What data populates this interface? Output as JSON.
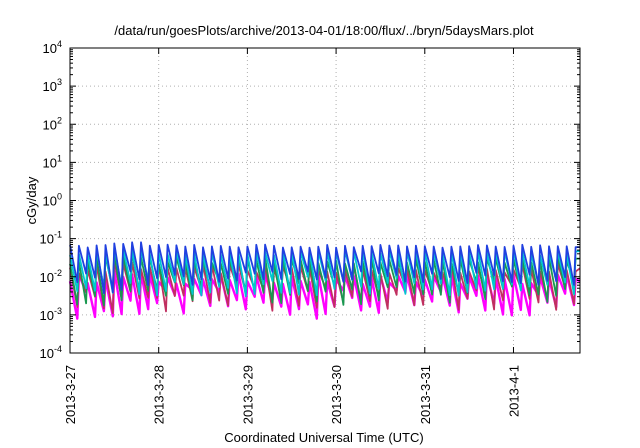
{
  "chart_data": {
    "type": "line",
    "title": "/data/run/goesPlots/archive/2013-04-01/18:00/flux/../bryn/5daysMars.plot",
    "xlabel": "Coordinated Universal Time (UTC)",
    "ylabel": "cGy/day",
    "y_scale": "log",
    "ylim": [
      0.0001,
      10000
    ],
    "xlim": [
      "2013-03-27T00:00",
      "2013-04-01T18:00"
    ],
    "grid": true,
    "legend": "none",
    "y_ticks": [
      {
        "value": 0.0001,
        "base": "10",
        "exp": "-4"
      },
      {
        "value": 0.001,
        "base": "10",
        "exp": "-3"
      },
      {
        "value": 0.01,
        "base": "10",
        "exp": "-2"
      },
      {
        "value": 0.1,
        "base": "10",
        "exp": "-1"
      },
      {
        "value": 1,
        "base": "10",
        "exp": "0"
      },
      {
        "value": 10,
        "base": "10",
        "exp": "1"
      },
      {
        "value": 100,
        "base": "10",
        "exp": "2"
      },
      {
        "value": 1000,
        "base": "10",
        "exp": "3"
      },
      {
        "value": 10000,
        "base": "10",
        "exp": "4"
      }
    ],
    "x_ticks": [
      {
        "value": "2013-03-27T00:00",
        "label": "2013-3-27"
      },
      {
        "value": "2013-03-28T00:00",
        "label": "2013-3-28"
      },
      {
        "value": "2013-03-29T00:00",
        "label": "2013-3-29"
      },
      {
        "value": "2013-03-30T00:00",
        "label": "2013-3-30"
      },
      {
        "value": "2013-03-31T00:00",
        "label": "2013-3-31"
      },
      {
        "value": "2013-04-01T00:00",
        "label": "2013-4-1"
      }
    ],
    "cycle_hours": 2.4,
    "series": [
      {
        "color": "#ff00ff",
        "band_min": [
          0.0008,
          0.0045
        ],
        "band_max": [
          0.003,
          0.012
        ]
      },
      {
        "color": "#c03060",
        "band_min": [
          0.0012,
          0.006
        ],
        "band_max": [
          0.006,
          0.022
        ]
      },
      {
        "color": "#1a9850",
        "band_min": [
          0.0018,
          0.008
        ],
        "band_max": [
          0.012,
          0.035
        ]
      },
      {
        "color": "#00c8d0",
        "band_min": [
          0.003,
          0.01
        ],
        "band_max": [
          0.025,
          0.05
        ]
      },
      {
        "color": "#2040e0",
        "band_min": [
          0.006,
          0.014
        ],
        "band_max": [
          0.045,
          0.07
        ]
      }
    ]
  }
}
